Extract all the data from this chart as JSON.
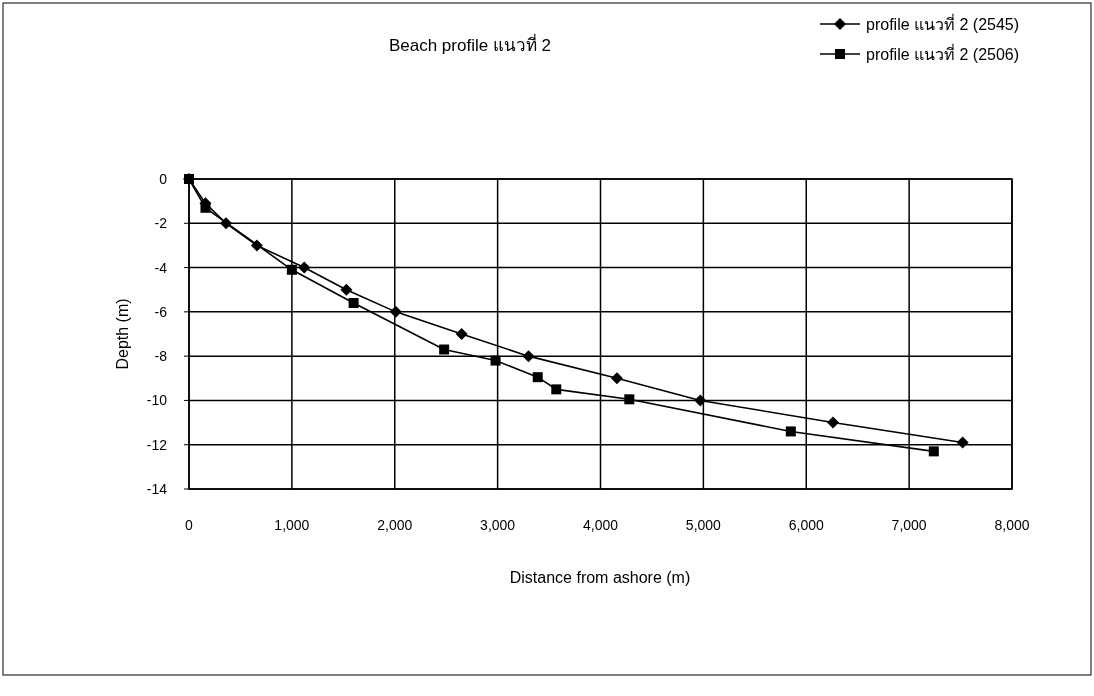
{
  "chart_data": {
    "type": "line",
    "title": "Beach  profile แนวที่ 2",
    "xlabel": "Distance from ashore (m)",
    "ylabel": "Depth (m)",
    "xlim": [
      0,
      8000
    ],
    "xticks": [
      {
        "value": 0,
        "label": "0"
      },
      {
        "value": 1000,
        "label": "1,000"
      },
      {
        "value": 2000,
        "label": "2,000"
      },
      {
        "value": 3000,
        "label": "3,000"
      },
      {
        "value": 4000,
        "label": "4,000"
      },
      {
        "value": 5000,
        "label": "5,000"
      },
      {
        "value": 6000,
        "label": "6,000"
      },
      {
        "value": 7000,
        "label": "7,000"
      },
      {
        "value": 8000,
        "label": "8,000"
      }
    ],
    "ylim": [
      -14,
      0
    ],
    "yticks": [
      0,
      -2,
      -4,
      -6,
      -8,
      -10,
      -12,
      -14
    ],
    "grid": true,
    "legend": "top right",
    "series": [
      {
        "name": "profile แนวที่ 2 (2545)",
        "color": "#000000",
        "marker": "diamond",
        "x": [
          0,
          160,
          360,
          660,
          1120,
          1530,
          2010,
          2650,
          3300,
          4160,
          4970,
          6260,
          7520
        ],
        "values": [
          0,
          -1.1,
          -2,
          -3,
          -4,
          -5,
          -6,
          -7,
          -8,
          -9,
          -10,
          -11,
          -11.9
        ]
      },
      {
        "name": "profile แนวที่ 2 (2506)",
        "color": "#000000",
        "marker": "square",
        "x": [
          0,
          160,
          1000,
          1600,
          2480,
          2980,
          3390,
          3570,
          4280,
          5850,
          7240
        ],
        "values": [
          0,
          -1.3,
          -4.1,
          -5.6,
          -7.7,
          -8.2,
          -8.95,
          -9.5,
          -9.95,
          -11.4,
          -12.3
        ]
      }
    ]
  }
}
